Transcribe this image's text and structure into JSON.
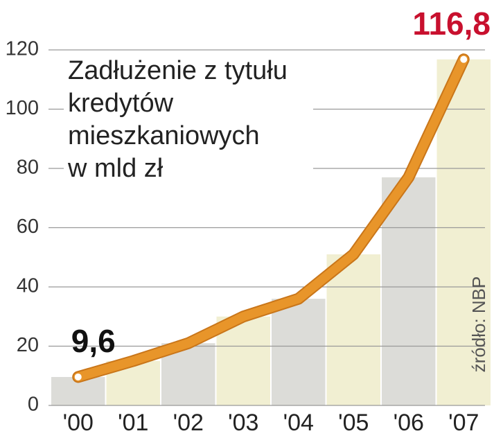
{
  "chart_data": {
    "type": "line",
    "title": [
      "Zadłużenie z tytułu",
      "kredytów",
      "mieszkaniowych",
      "w mld zł"
    ],
    "source": "źródło: NBP",
    "categories": [
      "'00",
      "'01",
      "'02",
      "'03",
      "'04",
      "'05",
      "'06",
      "'07"
    ],
    "values": [
      9.6,
      15,
      21,
      30,
      36,
      51,
      77,
      116.8
    ],
    "value_labels": [
      "9,6",
      null,
      null,
      null,
      null,
      null,
      null,
      "116,8"
    ],
    "color": "#e8952a",
    "bar_colors": [
      "#dcdcd8",
      "#f1efd2"
    ],
    "ylim": [
      0,
      120
    ],
    "yticks": [
      0,
      20,
      40,
      60,
      80,
      100,
      120
    ],
    "grid": true
  }
}
